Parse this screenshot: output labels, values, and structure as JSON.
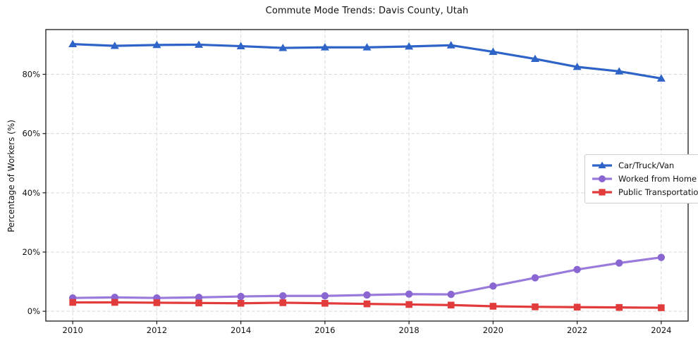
{
  "chart_data": {
    "type": "line",
    "title": "Commute Mode Trends: Davis County, Utah",
    "xlabel": "",
    "ylabel": "Percentage of Workers (%)",
    "x": [
      2010,
      2011,
      2012,
      2013,
      2014,
      2015,
      2016,
      2017,
      2018,
      2019,
      2020,
      2021,
      2022,
      2023,
      2024
    ],
    "series": [
      {
        "name": "Car/Truck/Van",
        "marker": "triangle",
        "color": "#2e63c7",
        "values": [
          90.2,
          89.6,
          89.9,
          90.0,
          89.5,
          88.9,
          89.1,
          89.1,
          89.4,
          89.8,
          87.6,
          85.2,
          82.5,
          81.0,
          78.6
        ]
      },
      {
        "name": "Worked from Home",
        "marker": "circle",
        "color": "#9a7bdb",
        "marker_color": "#8a66d2",
        "values": [
          4.5,
          4.7,
          4.5,
          4.7,
          5.0,
          5.2,
          5.2,
          5.5,
          5.8,
          5.7,
          8.5,
          11.3,
          14.1,
          16.3,
          18.2
        ]
      },
      {
        "name": "Public Transportation",
        "marker": "square",
        "color": "#e23b3b",
        "values": [
          3.0,
          3.0,
          2.9,
          2.8,
          2.7,
          2.9,
          2.7,
          2.5,
          2.3,
          2.1,
          1.7,
          1.5,
          1.4,
          1.3,
          1.2
        ]
      }
    ],
    "x_ticks": {
      "values": [
        2010,
        2012,
        2014,
        2016,
        2018,
        2020,
        2022,
        2024
      ],
      "labels": [
        "2010",
        "2012",
        "2014",
        "2016",
        "2018",
        "2020",
        "2022",
        "2024"
      ]
    },
    "y_ticks": {
      "values": [
        0,
        20,
        40,
        60,
        80
      ],
      "labels": [
        "0%",
        "20%",
        "40%",
        "60%",
        "80%"
      ]
    },
    "xlim": [
      2009.36,
      2024.64
    ],
    "ylim": [
      -3.3,
      95.1
    ],
    "grid": true,
    "grid_color": "#d8d8d8",
    "axis_color": "#1a1a1a",
    "legend_position": "center right"
  }
}
